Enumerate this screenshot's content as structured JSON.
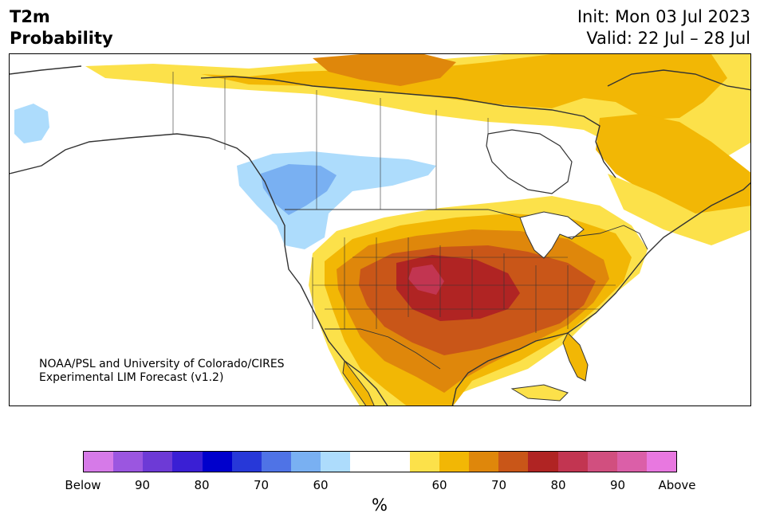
{
  "header": {
    "variable": "T2m",
    "subtitle": "Probability",
    "init": "Init: Mon 03 Jul 2023",
    "valid": "Valid: 22 Jul – 28 Jul"
  },
  "credit": {
    "line1": "NOAA/PSL and University of Colorado/CIRES",
    "line2": "Experimental LIM Forecast (v1.2)"
  },
  "colorbar": {
    "colors": [
      "#d67ae8",
      "#9b56e0",
      "#6d3ad6",
      "#3a1fd4",
      "#0000cc",
      "#2738d8",
      "#4f73e6",
      "#79b0f2",
      "#addcfc",
      "#ffffff",
      "#ffffff",
      "#fce14a",
      "#f2b705",
      "#df870b",
      "#c95618",
      "#b02423",
      "#c23551",
      "#d14f7f",
      "#db5fa8",
      "#e878e0"
    ],
    "tick_labels": [
      "Below",
      "90",
      "80",
      "70",
      "60",
      "60",
      "70",
      "80",
      "90",
      "Above"
    ],
    "unit": "%"
  },
  "map": {
    "region": "North America",
    "palette": {
      "light_yellow": "#fce14a",
      "yellow": "#f2b705",
      "orange": "#df870b",
      "dark_orange": "#c95618",
      "red": "#b02423",
      "pink": "#c23551",
      "light_blue": "#addcfc",
      "blue": "#79b0f2",
      "coast": "#333333"
    }
  }
}
